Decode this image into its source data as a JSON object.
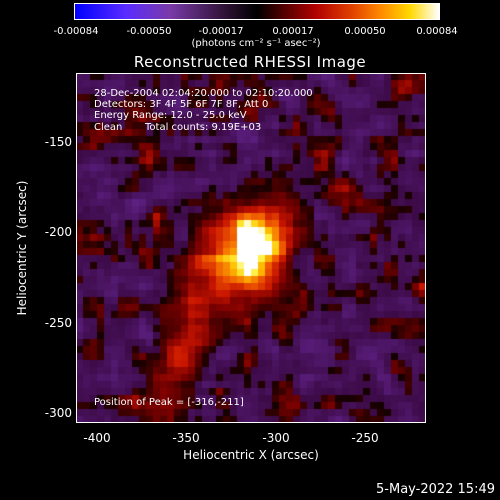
{
  "colorbar": {
    "ticks": [
      "-0.00084",
      "-0.00050",
      "-0.00017",
      "0.00017",
      "0.00050",
      "0.00084"
    ],
    "unit_label": "(photons cm⁻² s⁻¹ asec⁻²)",
    "colors": [
      "#0000ff",
      "#7a3aa8",
      "#000000",
      "#b00000",
      "#ff8a00",
      "#ffffff"
    ]
  },
  "title": "Reconstructed RHESSI Image",
  "annotations": {
    "time_range": "28-Dec-2004 02:04:20.000 to 02:10:20.000",
    "detectors": "Detectors: 3F 4F 5F 6F 7F 8F, Att 0",
    "energy": "Energy Range: 12.0 - 25.0 keV",
    "method": "Clean",
    "counts": "Total counts: 9.19E+03",
    "peak": "Position of Peak = [-316,-211]"
  },
  "axes": {
    "x_label": "Heliocentric X (arcsec)",
    "y_label": "Heliocentric Y (arcsec)",
    "x_ticks": [
      "-400",
      "-350",
      "-300",
      "-250"
    ],
    "y_ticks": [
      "-150",
      "-200",
      "-250",
      "-300"
    ]
  },
  "footer_date": "5-May-2022 15:49"
}
